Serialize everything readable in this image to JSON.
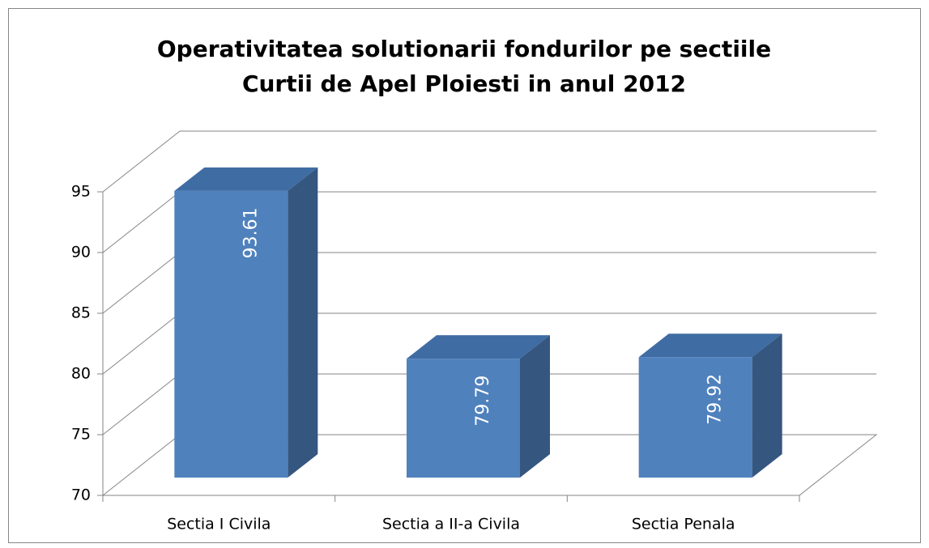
{
  "chart_data": {
    "type": "bar3d",
    "title": [
      "Operativitatea solutionarii fondurilor pe sectiile",
      "Curtii de Apel Ploiesti in anul 2012"
    ],
    "categories": [
      "Sectia I Civila",
      "Sectia a II-a Civila",
      "Sectia Penala"
    ],
    "values": [
      93.61,
      79.79,
      79.92
    ],
    "color": "#4f81bd",
    "ylim": [
      70,
      95
    ],
    "yticks": [
      70,
      75,
      80,
      85,
      90,
      95
    ],
    "grid": true
  }
}
